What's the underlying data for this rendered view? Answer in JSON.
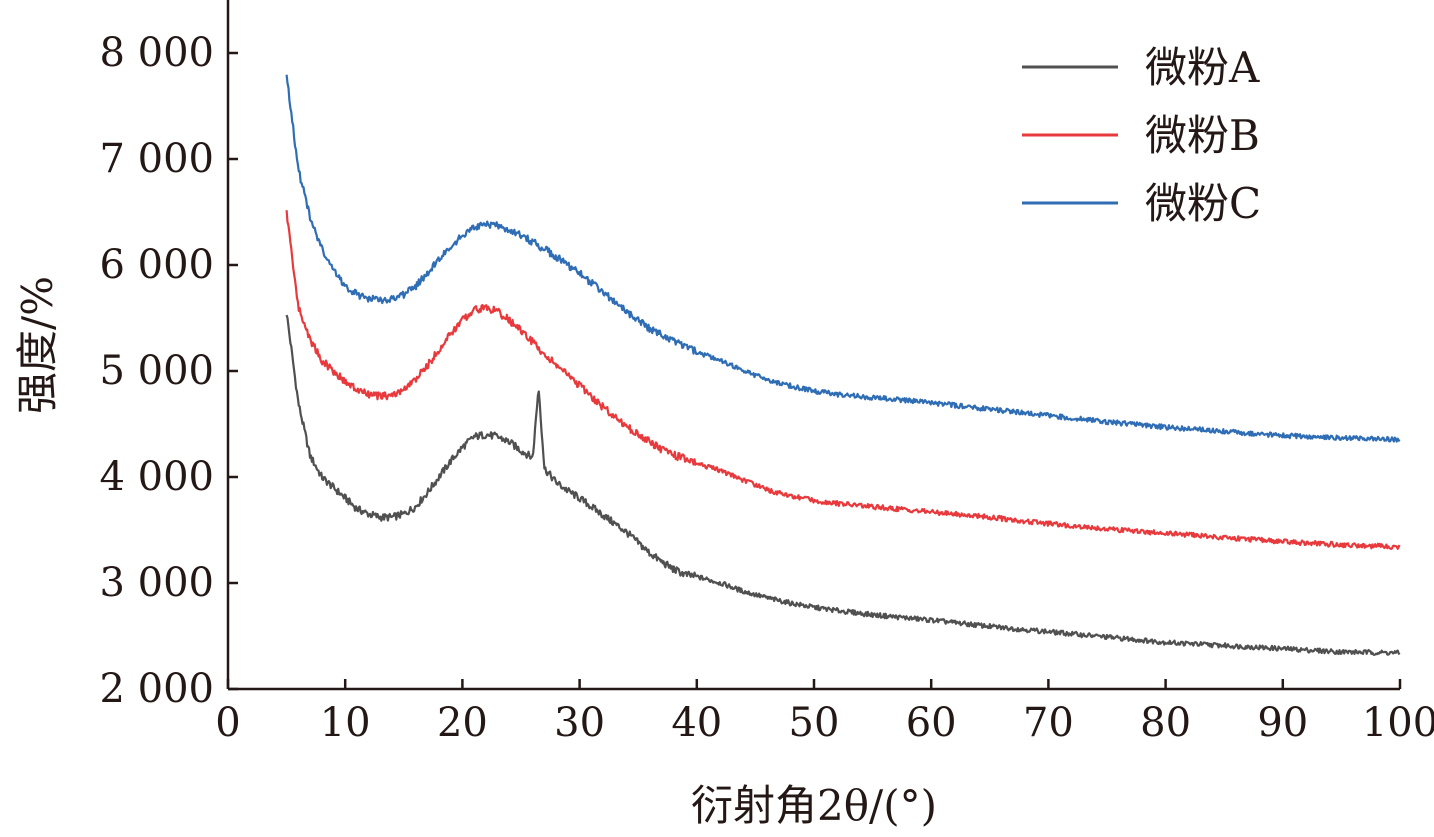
{
  "chart_data": {
    "type": "line",
    "xlabel": "衍射角2θ/(°)",
    "ylabel": "强度/%",
    "xlim": [
      0,
      100
    ],
    "ylim": [
      2000,
      8500
    ],
    "x_ticks": [
      0,
      10,
      20,
      30,
      40,
      50,
      60,
      70,
      80,
      90,
      100
    ],
    "x_tick_labels": [
      "0",
      "10",
      "20",
      "30",
      "40",
      "50",
      "60",
      "70",
      "80",
      "90",
      "100"
    ],
    "y_ticks": [
      2000,
      3000,
      4000,
      5000,
      6000,
      7000,
      8000
    ],
    "y_tick_labels": [
      "2 000",
      "3 000",
      "4 000",
      "5 000",
      "6 000",
      "7 000",
      "8 000"
    ],
    "grid": false,
    "legend_position": "top-right",
    "series": [
      {
        "name": "微粉A",
        "color": "#505050",
        "x": [
          5,
          6,
          7,
          8,
          9,
          10,
          11,
          12,
          13,
          14,
          15,
          16,
          17,
          18,
          19,
          20,
          21,
          22,
          23,
          24,
          25,
          26,
          26.5,
          27,
          28,
          29,
          30,
          31,
          32,
          33,
          34,
          35,
          36,
          37,
          38,
          39,
          40,
          42,
          44,
          46,
          48,
          50,
          52,
          55,
          58,
          60,
          65,
          70,
          75,
          80,
          85,
          90,
          95,
          100
        ],
        "values": [
          5550,
          4700,
          4200,
          4000,
          3900,
          3800,
          3700,
          3650,
          3620,
          3620,
          3650,
          3720,
          3850,
          4000,
          4150,
          4280,
          4380,
          4400,
          4380,
          4330,
          4250,
          4180,
          4850,
          4080,
          3950,
          3870,
          3800,
          3720,
          3640,
          3560,
          3480,
          3380,
          3280,
          3200,
          3130,
          3080,
          3060,
          3000,
          2920,
          2860,
          2810,
          2770,
          2740,
          2700,
          2670,
          2650,
          2590,
          2540,
          2490,
          2440,
          2410,
          2380,
          2350,
          2340
        ]
      },
      {
        "name": "微粉B",
        "color": "#e83a3d",
        "x": [
          5,
          6,
          7,
          8,
          9,
          10,
          11,
          12,
          13,
          14,
          15,
          16,
          17,
          18,
          19,
          20,
          21,
          22,
          23,
          24,
          25,
          26,
          27,
          28,
          29,
          30,
          31,
          32,
          33,
          34,
          35,
          36,
          37,
          38,
          39,
          40,
          42,
          44,
          46,
          48,
          50,
          52,
          55,
          58,
          60,
          65,
          70,
          75,
          80,
          85,
          90,
          95,
          100
        ],
        "values": [
          6500,
          5600,
          5300,
          5100,
          5000,
          4900,
          4820,
          4780,
          4760,
          4770,
          4820,
          4920,
          5050,
          5200,
          5350,
          5480,
          5580,
          5600,
          5560,
          5480,
          5380,
          5270,
          5160,
          5060,
          4960,
          4860,
          4760,
          4660,
          4570,
          4480,
          4400,
          4330,
          4260,
          4210,
          4170,
          4130,
          4060,
          3970,
          3880,
          3820,
          3780,
          3750,
          3720,
          3690,
          3670,
          3620,
          3560,
          3510,
          3470,
          3430,
          3390,
          3360,
          3340
        ]
      },
      {
        "name": "微粉C",
        "color": "#2f6db5",
        "x": [
          5,
          6,
          7,
          8,
          9,
          10,
          11,
          12,
          13,
          14,
          15,
          16,
          17,
          18,
          19,
          20,
          21,
          22,
          23,
          24,
          25,
          26,
          27,
          28,
          29,
          30,
          31,
          32,
          33,
          34,
          35,
          36,
          37,
          38,
          39,
          40,
          42,
          44,
          46,
          48,
          50,
          52,
          55,
          58,
          60,
          65,
          70,
          75,
          80,
          85,
          90,
          95,
          100
        ],
        "values": [
          7800,
          6900,
          6450,
          6150,
          5950,
          5800,
          5720,
          5680,
          5670,
          5680,
          5720,
          5800,
          5920,
          6050,
          6180,
          6280,
          6350,
          6380,
          6370,
          6330,
          6280,
          6220,
          6150,
          6080,
          6000,
          5920,
          5830,
          5740,
          5650,
          5560,
          5480,
          5400,
          5340,
          5280,
          5230,
          5180,
          5100,
          5000,
          4920,
          4860,
          4810,
          4780,
          4750,
          4720,
          4700,
          4640,
          4580,
          4520,
          4470,
          4430,
          4390,
          4370,
          4350
        ]
      }
    ]
  }
}
